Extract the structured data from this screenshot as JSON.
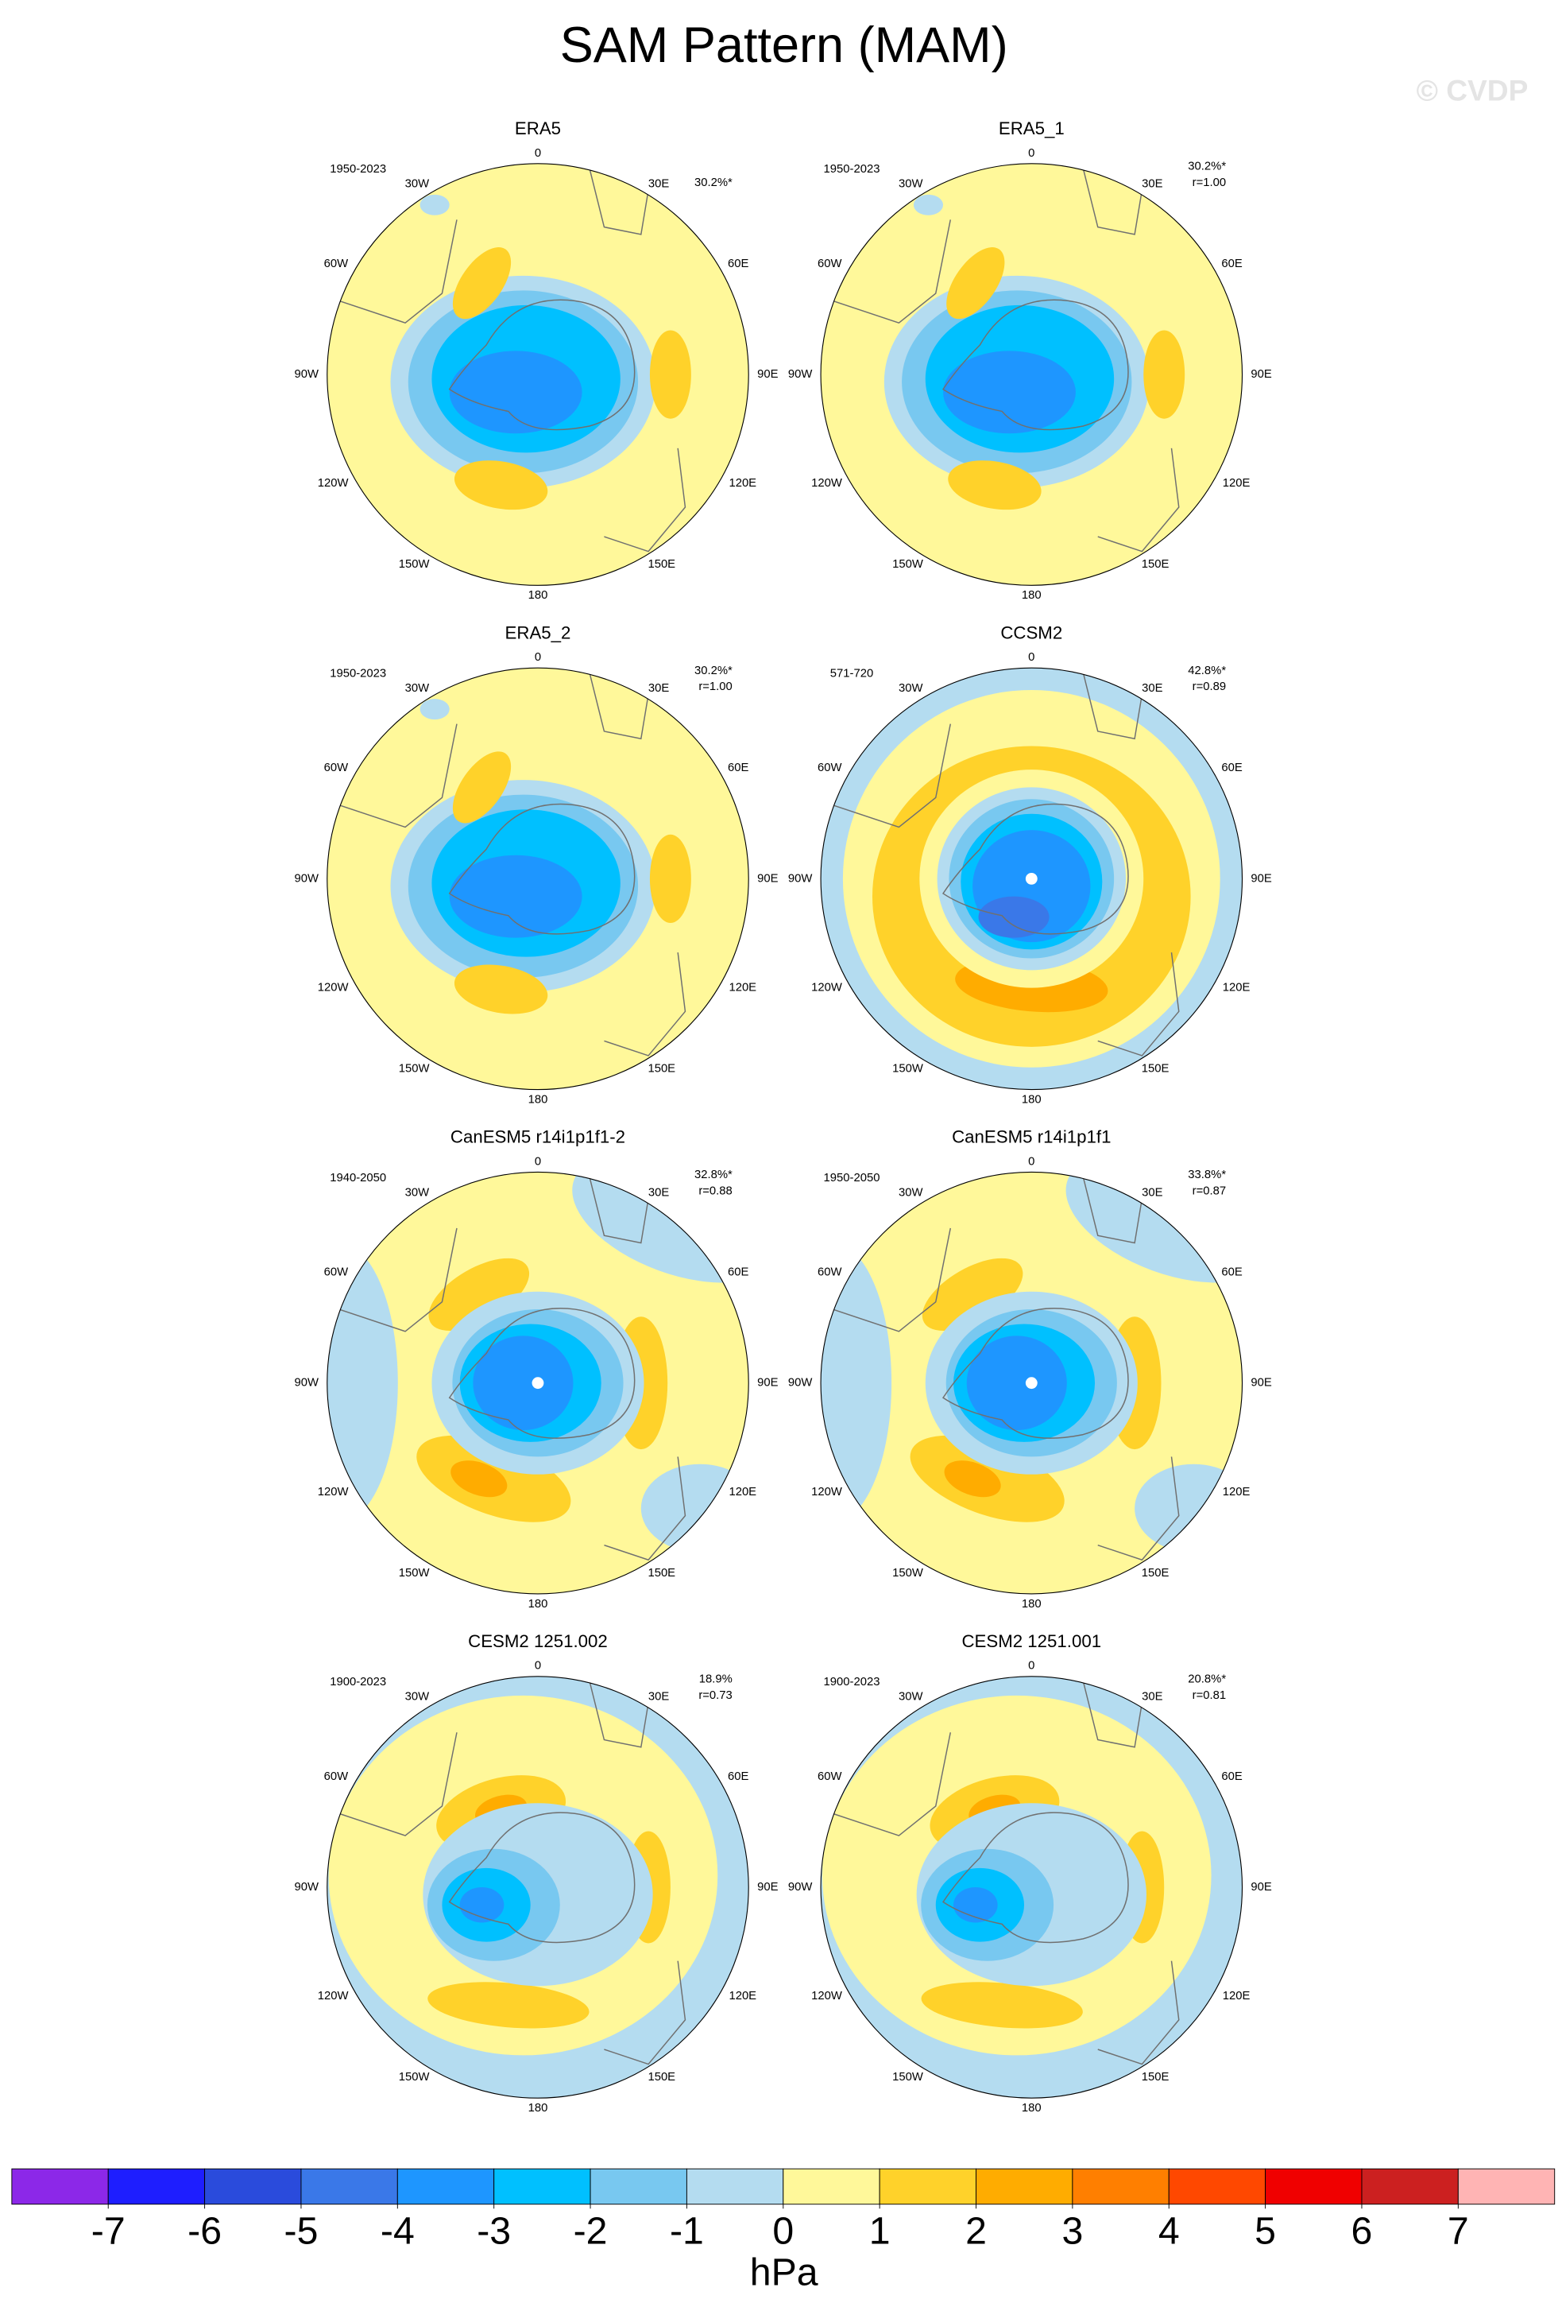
{
  "title": "SAM Pattern (MAM)",
  "watermark": "© CVDP",
  "lon_labels": [
    "0",
    "30E",
    "60E",
    "90E",
    "120E",
    "150E",
    "180",
    "150W",
    "120W",
    "90W",
    "60W",
    "30W"
  ],
  "panels": [
    {
      "title": "ERA5",
      "period": "1950-2023",
      "percent": "30.2%*"
    },
    {
      "title": "ERA5_1",
      "period": "1950-2023",
      "percent": "30.2%*",
      "r": "r=1.00"
    },
    {
      "title": "ERA5_2",
      "period": "1950-2023",
      "percent": "30.2%*",
      "r": "r=1.00"
    },
    {
      "title": "CCSM2",
      "period": "571-720",
      "percent": "42.8%*",
      "r": "r=0.89"
    },
    {
      "title": "CanESM5 r14i1p1f1-2",
      "period": "1940-2050",
      "percent": "32.8%*",
      "r": "r=0.88"
    },
    {
      "title": "CanESM5 r14i1p1f1",
      "period": "1950-2050",
      "percent": "33.8%*",
      "r": "r=0.87"
    },
    {
      "title": "CESM2 1251.002",
      "period": "1900-2023",
      "percent": "18.9%",
      "r": "r=0.73"
    },
    {
      "title": "CESM2 1251.001",
      "period": "1900-2023",
      "percent": "20.8%*",
      "r": "r=0.81"
    }
  ],
  "colorbar": {
    "levels": [
      -7,
      -6,
      -5,
      -4,
      -3,
      -2,
      -1,
      0,
      1,
      2,
      3,
      4,
      5,
      6,
      7
    ],
    "colors": [
      "#8c28e8",
      "#1e1eff",
      "#2a4bdc",
      "#3a78e8",
      "#1e96ff",
      "#00c0ff",
      "#78c8f0",
      "#b4dcf0",
      "#fff89a",
      "#ffd22a",
      "#ffac00",
      "#ff7f00",
      "#ff4800",
      "#f00000",
      "#cc2020",
      "#ffb4b4"
    ],
    "label": "hPa"
  }
}
